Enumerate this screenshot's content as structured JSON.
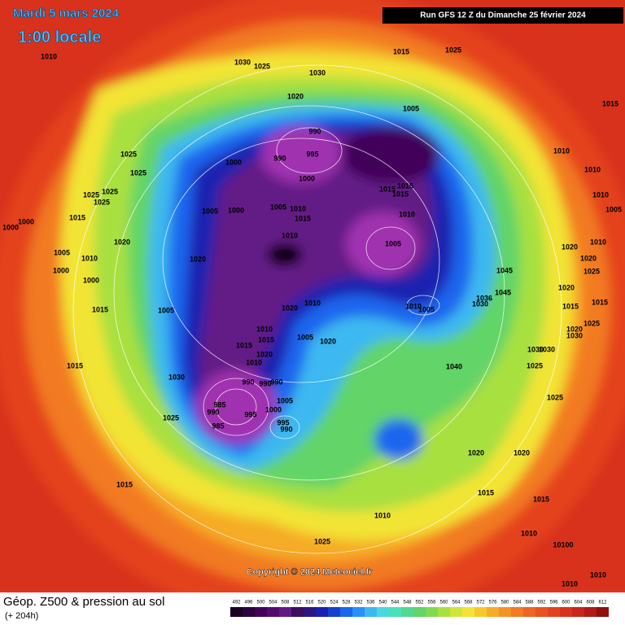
{
  "header": {
    "date": "Mardi 5 mars 2024",
    "time": "1:00 locale",
    "run": "Run GFS 12 Z du Dimanche 25 février 2024"
  },
  "footer": {
    "title": "Géop. Z500 & pression au sol",
    "lead": "(+ 204h)",
    "copyright": "Copyright © 2024 Meteociel.fr"
  },
  "legend": {
    "values": [
      492,
      496,
      500,
      504,
      508,
      512,
      516,
      520,
      524,
      528,
      532,
      536,
      540,
      544,
      548,
      552,
      556,
      560,
      564,
      568,
      572,
      576,
      580,
      584,
      588,
      592,
      596,
      600,
      604,
      608,
      612
    ],
    "colors": [
      "#1a0020",
      "#2e0040",
      "#43005a",
      "#560a70",
      "#641a86",
      "#3a0e5e",
      "#2a1880",
      "#1a20b0",
      "#1440d0",
      "#1a66ee",
      "#2a90f6",
      "#3cb8f0",
      "#48d8e0",
      "#4ce0b8",
      "#52d890",
      "#62d468",
      "#80da50",
      "#a8e040",
      "#d0e43a",
      "#f2e436",
      "#f7c82e",
      "#f6ac28",
      "#f49226",
      "#f27a24",
      "#ee6422",
      "#ea5220",
      "#e4421e",
      "#d8321c",
      "#c8261a",
      "#b01a18",
      "#901010"
    ]
  },
  "isobar_labels": [
    "1010",
    "1030",
    "1025",
    "1030",
    "1015",
    "1025",
    "1015",
    "1020",
    "1005",
    "990",
    "995",
    "990",
    "1000",
    "1025",
    "1025",
    "1000",
    "1010",
    "1010",
    "1010",
    "1005",
    "1025",
    "1025",
    "1025",
    "1015",
    "1000",
    "1000",
    "1005",
    "1000",
    "1005",
    "1010",
    "1015",
    "1015",
    "1015",
    "1015",
    "1010",
    "1020",
    "1005",
    "1010",
    "1020",
    "1010",
    "1005",
    "1020",
    "1010",
    "1020",
    "1025",
    "1045",
    "1045",
    "1000",
    "1000",
    "1036",
    "1030",
    "1020",
    "1015",
    "1015",
    "1020",
    "1010",
    "1010",
    "1005",
    "1015",
    "1005",
    "1025",
    "1020",
    "1030",
    "1010",
    "1015",
    "1015",
    "1005",
    "1020",
    "1020",
    "1010",
    "1030",
    "1030",
    "1025",
    "1040",
    "1015",
    "990",
    "990",
    "990",
    "1030",
    "985",
    "990",
    "995",
    "1005",
    "1000",
    "995",
    "990",
    "985",
    "1025",
    "1025",
    "1020",
    "1020",
    "1015",
    "1015",
    "1015",
    "1010",
    "1010",
    "10100",
    "1025",
    "1010",
    "1010"
  ]
}
